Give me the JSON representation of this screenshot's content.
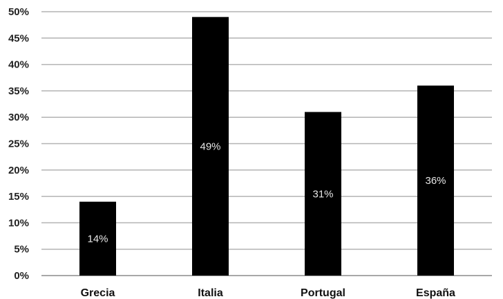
{
  "chart_data": {
    "type": "bar",
    "categories": [
      "Grecia",
      "Italia",
      "Portugal",
      "España"
    ],
    "values": [
      14,
      49,
      31,
      36
    ],
    "value_labels": [
      "14%",
      "49%",
      "31%",
      "36%"
    ],
    "title": "",
    "xlabel": "",
    "ylabel": "",
    "ylim": [
      0,
      50
    ],
    "y_ticks": [
      0,
      5,
      10,
      15,
      20,
      25,
      30,
      35,
      40,
      45,
      50
    ],
    "y_tick_labels": [
      "0%",
      "5%",
      "10%",
      "15%",
      "20%",
      "25%",
      "30%",
      "35%",
      "40%",
      "45%",
      "50%"
    ],
    "grid": true,
    "legend": "none",
    "bar_color": "#000000",
    "data_label_color": "#e6e6e6"
  }
}
